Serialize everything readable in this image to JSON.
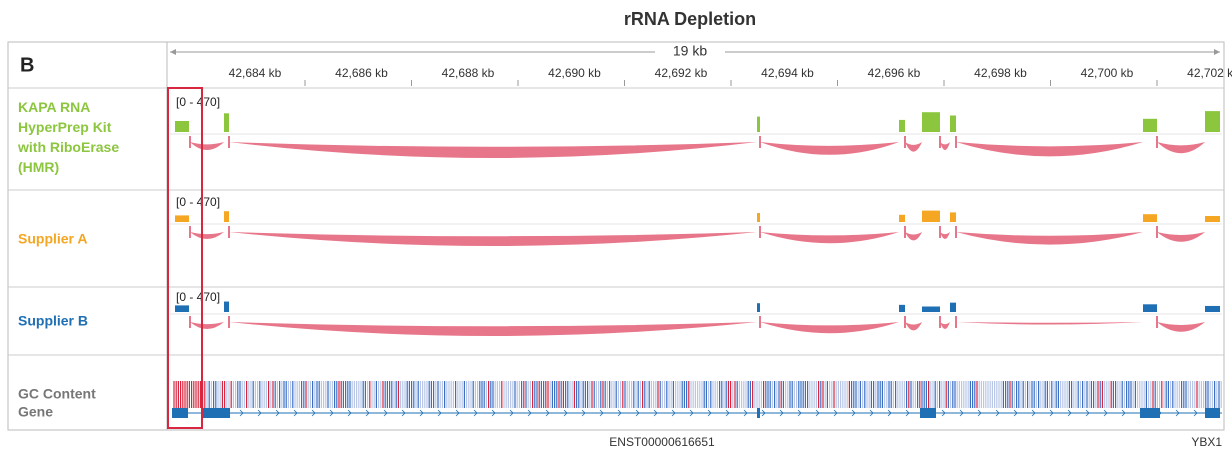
{
  "header": {
    "title": "rRNA Depletion",
    "panel": "B",
    "span": "19 kb",
    "ticks": [
      "42,684 kb",
      "42,686 kb",
      "42,688 kb",
      "42,690 kb",
      "42,692 kb",
      "42,694 kb",
      "42,696 kb",
      "42,698 kb",
      "42,700 kb",
      "42,702 kb"
    ]
  },
  "tracks": [
    {
      "name": "KAPA RNA HyperPrep Kit with RiboErase (HMR)",
      "range": "[0 - 470]"
    },
    {
      "name": "Supplier A",
      "range": "[0 - 470]"
    },
    {
      "name": "Supplier B",
      "range": "[0 - 470]"
    }
  ],
  "footer": {
    "gc": "GC Content",
    "gene": "Gene",
    "transcript": "ENST00000616651",
    "symbol": "YBX1"
  }
}
